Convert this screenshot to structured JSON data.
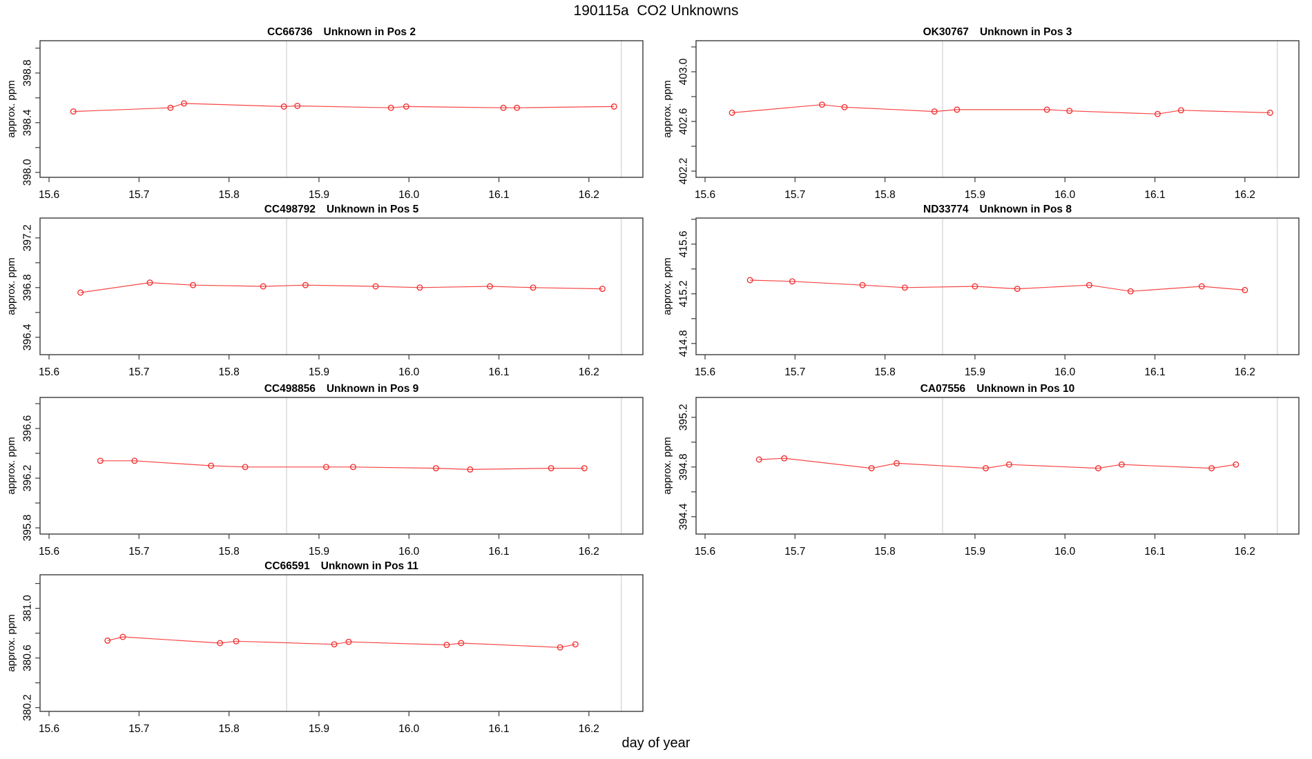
{
  "header": {
    "title": "190115a  CO2 Unknowns"
  },
  "colors": {
    "series_point": "#f12f2f",
    "series_line": "#f84545",
    "reference_line": "#d8d8d8",
    "axis": "#3a3a3a",
    "text": "#000000"
  },
  "chart_data": {
    "type": "line",
    "grid": {
      "rows": 4,
      "cols": 2,
      "grid_lines": "off",
      "legend": "none"
    },
    "x_axis": {
      "label": "day of year",
      "lim": [
        15.59,
        16.26
      ],
      "ticks": [
        15.6,
        15.7,
        15.8,
        15.9,
        16.0,
        16.1,
        16.2
      ]
    },
    "y_axis_label": "approx. ppm",
    "reference_vlines": [
      15.864,
      16.236
    ],
    "plots": [
      {
        "sample_id": "CC66736",
        "subtitle": "Unknown in Pos 2",
        "row": 0,
        "col": 0,
        "ylim": [
          397.96,
          399.06
        ],
        "yticks_labeled": [
          398.0,
          398.4,
          398.8
        ],
        "yticks_minor": [
          398.2,
          398.6,
          399.0
        ],
        "x": [
          15.627,
          15.735,
          15.75,
          15.861,
          15.876,
          15.98,
          15.997,
          16.105,
          16.12,
          16.228
        ],
        "y": [
          398.49,
          398.52,
          398.555,
          398.53,
          398.535,
          398.52,
          398.53,
          398.52,
          398.52,
          398.53
        ]
      },
      {
        "sample_id": "OK30767",
        "subtitle": "Unknown in Pos 3",
        "row": 0,
        "col": 1,
        "ylim": [
          402.15,
          403.25
        ],
        "yticks_labeled": [
          402.2,
          402.6,
          403.0
        ],
        "yticks_minor": [
          402.4,
          402.8,
          403.2
        ],
        "x": [
          15.63,
          15.73,
          15.755,
          15.855,
          15.88,
          15.98,
          16.005,
          16.103,
          16.129,
          16.228
        ],
        "y": [
          402.67,
          402.735,
          402.715,
          402.68,
          402.695,
          402.695,
          402.685,
          402.66,
          402.69,
          402.67
        ]
      },
      {
        "sample_id": "CC498792",
        "subtitle": "Unknown in Pos 5",
        "row": 1,
        "col": 0,
        "ylim": [
          396.26,
          397.36
        ],
        "yticks_labeled": [
          396.4,
          396.8,
          397.2
        ],
        "yticks_minor": [
          396.6,
          397.0
        ],
        "x": [
          15.635,
          15.712,
          15.76,
          15.838,
          15.885,
          15.963,
          16.012,
          16.09,
          16.138,
          16.215
        ],
        "y": [
          396.76,
          396.84,
          396.82,
          396.81,
          396.82,
          396.81,
          396.8,
          396.81,
          396.8,
          396.79
        ]
      },
      {
        "sample_id": "ND33774",
        "subtitle": "Unknown in Pos 8",
        "row": 1,
        "col": 1,
        "ylim": [
          414.71,
          415.81
        ],
        "yticks_labeled": [
          414.8,
          415.2,
          415.6
        ],
        "yticks_minor": [
          415.0,
          415.4,
          415.8
        ],
        "x": [
          15.65,
          15.697,
          15.775,
          15.822,
          15.9,
          15.947,
          16.027,
          16.073,
          16.152,
          16.2
        ],
        "y": [
          415.31,
          415.3,
          415.27,
          415.25,
          415.26,
          415.24,
          415.27,
          415.22,
          415.26,
          415.23
        ]
      },
      {
        "sample_id": "CC498856",
        "subtitle": "Unknown in Pos 9",
        "row": 2,
        "col": 0,
        "ylim": [
          395.75,
          396.85
        ],
        "yticks_labeled": [
          395.8,
          396.2,
          396.6
        ],
        "yticks_minor": [
          396.0,
          396.4,
          396.8
        ],
        "x": [
          15.657,
          15.695,
          15.78,
          15.818,
          15.908,
          15.938,
          16.03,
          16.068,
          16.158,
          16.195
        ],
        "y": [
          396.34,
          396.34,
          396.3,
          396.29,
          396.29,
          396.29,
          396.28,
          396.27,
          396.28,
          396.28
        ]
      },
      {
        "sample_id": "CA07556",
        "subtitle": "Unknown in Pos 10",
        "row": 2,
        "col": 1,
        "ylim": [
          394.26,
          395.36
        ],
        "yticks_labeled": [
          394.4,
          394.8,
          395.2
        ],
        "yticks_minor": [
          394.6,
          395.0
        ],
        "x": [
          15.66,
          15.688,
          15.785,
          15.813,
          15.912,
          15.938,
          16.037,
          16.063,
          16.163,
          16.19
        ],
        "y": [
          394.86,
          394.87,
          394.79,
          394.83,
          394.79,
          394.82,
          394.79,
          394.82,
          394.79,
          394.82
        ]
      },
      {
        "sample_id": "CC66591",
        "subtitle": "Unknown in Pos 11",
        "row": 3,
        "col": 0,
        "ylim": [
          380.17,
          381.27
        ],
        "yticks_labeled": [
          380.2,
          380.6,
          381.0
        ],
        "yticks_minor": [
          380.4,
          380.8,
          381.2
        ],
        "x": [
          15.665,
          15.682,
          15.79,
          15.808,
          15.917,
          15.933,
          16.042,
          16.058,
          16.168,
          16.185
        ],
        "y": [
          380.74,
          380.77,
          380.72,
          380.735,
          380.71,
          380.73,
          380.705,
          380.72,
          380.685,
          380.71
        ]
      }
    ]
  }
}
